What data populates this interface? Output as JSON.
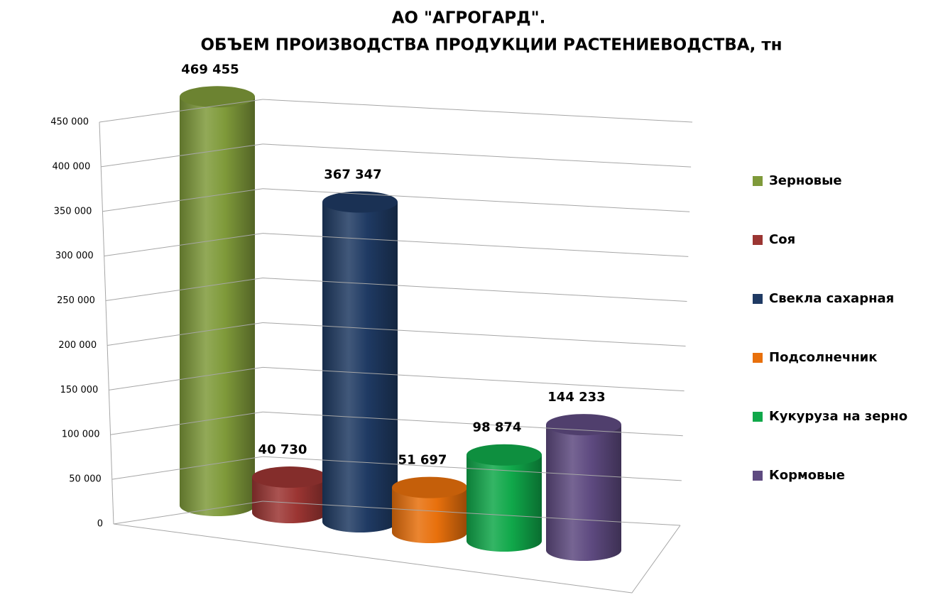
{
  "chart_data": {
    "type": "bar3d",
    "title": "АО \"АГРОГАРД\".",
    "subtitle": "ОБЪЕМ ПРОИЗВОДСТВА ПРОДУКЦИИ РАСТЕНИЕВОДСТВА, тн",
    "categories": [
      null
    ],
    "series": [
      {
        "name": "Зерновые",
        "color": "#7f9a3a",
        "values": [
          469455
        ],
        "value_labels": [
          "469 455"
        ]
      },
      {
        "name": "Соя",
        "color": "#9b3532",
        "values": [
          40730
        ],
        "value_labels": [
          "40 730"
        ]
      },
      {
        "name": "Свекла сахарная",
        "color": "#1f3a63",
        "values": [
          367347
        ],
        "value_labels": [
          "367 347"
        ]
      },
      {
        "name": "Подсолнечник",
        "color": "#e8700c",
        "values": [
          51697
        ],
        "value_labels": [
          "51 697"
        ]
      },
      {
        "name": "Кукуруза на зерно",
        "color": "#10a84a",
        "values": [
          98874
        ],
        "value_labels": [
          "98 874"
        ]
      },
      {
        "name": "Кормовые",
        "color": "#5e4a80",
        "values": [
          144233
        ],
        "value_labels": [
          "144 233"
        ]
      }
    ],
    "ylim": [
      0,
      450000
    ],
    "yticks": [
      {
        "value": 0,
        "label": "0"
      },
      {
        "value": 50000,
        "label": "50 000"
      },
      {
        "value": 100000,
        "label": "100 000"
      },
      {
        "value": 150000,
        "label": "150 000"
      },
      {
        "value": 200000,
        "label": "200 000"
      },
      {
        "value": 250000,
        "label": "250 000"
      },
      {
        "value": 300000,
        "label": "300 000"
      },
      {
        "value": 350000,
        "label": "350 000"
      },
      {
        "value": 400000,
        "label": "400 000"
      },
      {
        "value": 450000,
        "label": "450 000"
      }
    ],
    "grid": true,
    "legend": "right"
  }
}
